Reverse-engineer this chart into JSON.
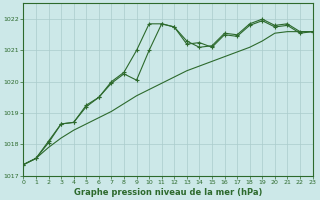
{
  "x": [
    0,
    1,
    2,
    3,
    4,
    5,
    6,
    7,
    8,
    9,
    10,
    11,
    12,
    13,
    14,
    15,
    16,
    17,
    18,
    19,
    20,
    21,
    22,
    23
  ],
  "line1_y": [
    1017.35,
    1017.55,
    1018.05,
    1018.65,
    1018.7,
    1019.25,
    1019.5,
    1020.0,
    1020.3,
    1021.0,
    1021.85,
    1021.85,
    1021.75,
    1021.3,
    1021.1,
    1021.15,
    1021.55,
    1021.5,
    1021.85,
    1022.0,
    1021.8,
    1021.85,
    1021.6,
    1021.6
  ],
  "line2_y": [
    1017.35,
    1017.55,
    1018.1,
    1018.65,
    1018.7,
    1019.2,
    1019.5,
    1019.95,
    1020.25,
    1020.05,
    1021.0,
    1021.85,
    1021.75,
    1021.2,
    1021.25,
    1021.1,
    1021.5,
    1021.45,
    1021.8,
    1021.95,
    1021.75,
    1021.8,
    1021.55,
    1021.6
  ],
  "line3_y": [
    1017.35,
    1017.55,
    1017.9,
    1018.2,
    1018.45,
    1018.65,
    1018.85,
    1019.05,
    1019.3,
    1019.55,
    1019.75,
    1019.95,
    1020.15,
    1020.35,
    1020.5,
    1020.65,
    1020.8,
    1020.95,
    1021.1,
    1021.3,
    1021.55,
    1021.6,
    1021.6,
    1021.6
  ],
  "line_color": "#2d6a2d",
  "bg_color": "#cce8e8",
  "grid_color": "#aacccc",
  "xlabel": "Graphe pression niveau de la mer (hPa)",
  "ylim": [
    1017.0,
    1022.5
  ],
  "xlim": [
    0,
    23
  ],
  "yticks": [
    1017,
    1018,
    1019,
    1020,
    1021,
    1022
  ],
  "xticks": [
    0,
    1,
    2,
    3,
    4,
    5,
    6,
    7,
    8,
    9,
    10,
    11,
    12,
    13,
    14,
    15,
    16,
    17,
    18,
    19,
    20,
    21,
    22,
    23
  ],
  "xlabel_fontsize": 6.0,
  "tick_fontsize": 4.5
}
